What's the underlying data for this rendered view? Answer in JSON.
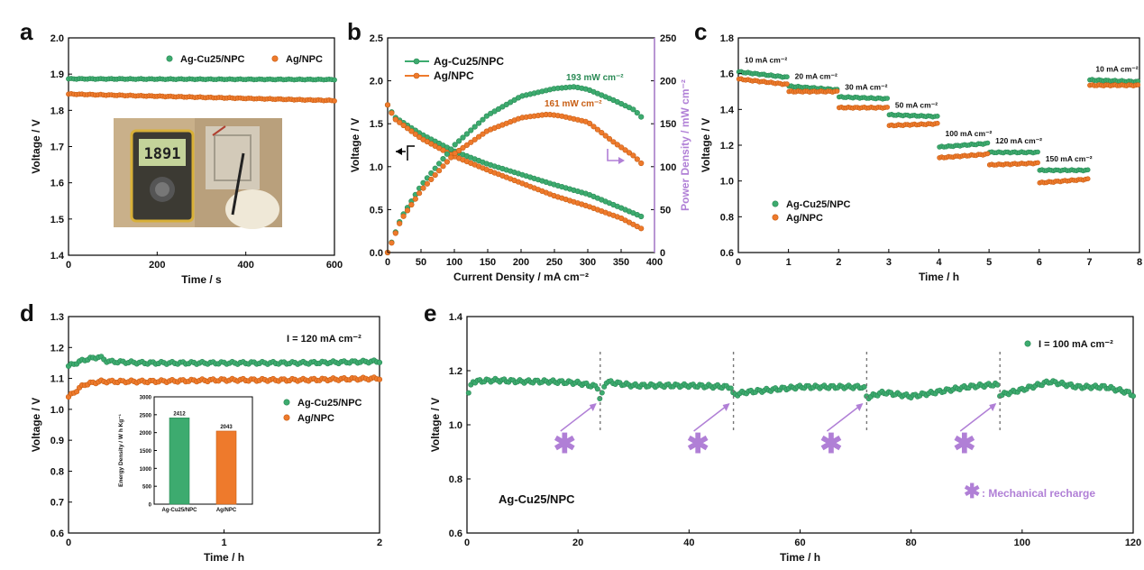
{
  "colors": {
    "green": "#3dab6f",
    "green_edge": "#2a8a55",
    "orange": "#ee7a2c",
    "orange_edge": "#c85e14",
    "purple": "#b07fd6"
  },
  "chart_data": [
    {
      "panel": "a",
      "type": "line",
      "xlabel": "Time / s",
      "ylabel": "Voltage / V",
      "xlim": [
        0,
        600
      ],
      "ylim": [
        1.4,
        2.0
      ],
      "xticks": [
        "0",
        "200",
        "400",
        "600"
      ],
      "yticks": [
        "1.4",
        "1.5",
        "1.6",
        "1.7",
        "1.8",
        "1.9",
        "2.0"
      ],
      "legend_position": "top-right",
      "photo": {
        "display": "1891",
        "description": "multimeter"
      },
      "series": [
        {
          "name": "Ag-Cu25/NPC",
          "color": "green",
          "x": [
            0,
            600
          ],
          "y": [
            1.887,
            1.885
          ]
        },
        {
          "name": "Ag/NPC",
          "color": "orange",
          "x": [
            0,
            600
          ],
          "y": [
            1.845,
            1.827
          ]
        }
      ]
    },
    {
      "panel": "b",
      "type": "line",
      "xlabel": "Current Density / mA cm⁻²",
      "ylabel": "Voltage / V",
      "y2label": "Power Density / mW cm⁻²",
      "xlim": [
        0,
        400
      ],
      "ylim": [
        0,
        2.5
      ],
      "y2lim": [
        0,
        250
      ],
      "xticks": [
        "0",
        "50",
        "100",
        "150",
        "200",
        "250",
        "300",
        "350",
        "400"
      ],
      "yticks": [
        "0.0",
        "0.5",
        "1.0",
        "1.5",
        "2.0",
        "2.5"
      ],
      "y2ticks": [
        "0",
        "50",
        "100",
        "150",
        "200",
        "250"
      ],
      "legend_position": "top-left",
      "annotations": [
        "193 mW cm⁻²",
        "161 mW cm⁻²"
      ],
      "series": [
        {
          "name": "Ag-Cu25/NPC",
          "color": "green",
          "kind": "voltage",
          "x": [
            0,
            10,
            50,
            100,
            150,
            200,
            250,
            300,
            350,
            380
          ],
          "y": [
            1.72,
            1.58,
            1.38,
            1.18,
            1.03,
            0.91,
            0.79,
            0.68,
            0.52,
            0.42
          ]
        },
        {
          "name": "Ag/NPC",
          "color": "orange",
          "kind": "voltage",
          "x": [
            0,
            10,
            50,
            100,
            150,
            200,
            250,
            300,
            350,
            380
          ],
          "y": [
            1.72,
            1.56,
            1.33,
            1.12,
            0.96,
            0.81,
            0.66,
            0.54,
            0.4,
            0.28
          ]
        },
        {
          "name": "Ag-Cu25/NPC",
          "color": "green",
          "kind": "power",
          "x": [
            0,
            20,
            50,
            100,
            150,
            200,
            250,
            280,
            300,
            340,
            370,
            380
          ],
          "y": [
            0,
            40,
            78,
            125,
            160,
            182,
            191,
            193,
            190,
            177,
            166,
            158
          ]
        },
        {
          "name": "Ag/NPC",
          "color": "orange",
          "kind": "power",
          "x": [
            0,
            20,
            50,
            100,
            150,
            200,
            240,
            260,
            300,
            340,
            370,
            380
          ],
          "y": [
            0,
            38,
            72,
            115,
            142,
            157,
            161,
            159,
            152,
            128,
            112,
            104
          ]
        }
      ]
    },
    {
      "panel": "c",
      "type": "line",
      "xlabel": "Time / h",
      "ylabel": "Voltage / V",
      "xlim": [
        0,
        8
      ],
      "ylim": [
        0.6,
        1.8
      ],
      "xticks": [
        "0",
        "1",
        "2",
        "3",
        "4",
        "5",
        "6",
        "7",
        "8"
      ],
      "yticks": [
        "0.6",
        "0.8",
        "1.0",
        "1.2",
        "1.4",
        "1.6",
        "1.8"
      ],
      "legend_position": "bottom-left",
      "step_labels": [
        "10 mA cm⁻²",
        "20 mA cm⁻²",
        "30 mA cm⁻²",
        "50 mA cm⁻²",
        "100 mA cm⁻²",
        "120 mA cm⁻²",
        "150 mA cm⁻²",
        "10 mA cm⁻²"
      ],
      "segments": [
        [
          0,
          1
        ],
        [
          1,
          2
        ],
        [
          2,
          3
        ],
        [
          3,
          4
        ],
        [
          4,
          5
        ],
        [
          5,
          6
        ],
        [
          6,
          7
        ],
        [
          7,
          8
        ]
      ],
      "series": [
        {
          "name": "Ag-Cu25/NPC",
          "color": "green",
          "start": [
            1.61,
            1.53,
            1.47,
            1.37,
            1.19,
            1.16,
            1.06,
            1.565
          ],
          "end": [
            1.58,
            1.51,
            1.46,
            1.36,
            1.21,
            1.16,
            1.06,
            1.555
          ]
        },
        {
          "name": "Ag/NPC",
          "color": "orange",
          "start": [
            1.57,
            1.5,
            1.41,
            1.31,
            1.13,
            1.09,
            0.99,
            1.535
          ],
          "end": [
            1.54,
            1.5,
            1.41,
            1.32,
            1.15,
            1.1,
            1.01,
            1.535
          ]
        }
      ]
    },
    {
      "panel": "d",
      "type": "line",
      "xlabel": "Time / h",
      "ylabel": "Voltage / V",
      "xlim": [
        0,
        2
      ],
      "ylim": [
        0.6,
        1.3
      ],
      "xticks": [
        "0",
        "1",
        "2"
      ],
      "yticks": [
        "0.6",
        "0.7",
        "0.8",
        "0.9",
        "1.0",
        "1.1",
        "1.2",
        "1.3"
      ],
      "legend_position": "right",
      "annotation": "I = 120 mA cm⁻²",
      "series": [
        {
          "name": "Ag-Cu25/NPC",
          "color": "green",
          "x": [
            0,
            0.1,
            0.2,
            0.25,
            0.5,
            1.0,
            1.5,
            2.0
          ],
          "y": [
            1.14,
            1.16,
            1.17,
            1.155,
            1.15,
            1.15,
            1.15,
            1.155
          ]
        },
        {
          "name": "Ag/NPC",
          "color": "orange",
          "x": [
            0,
            0.1,
            0.2,
            0.5,
            1.0,
            1.5,
            2.0
          ],
          "y": [
            1.04,
            1.08,
            1.09,
            1.09,
            1.095,
            1.095,
            1.1
          ]
        }
      ],
      "inset": {
        "type": "bar",
        "ylabel": "Energy Density / W h Kg⁻¹",
        "ylim": [
          0,
          3000
        ],
        "yticks": [
          "0",
          "500",
          "1000",
          "1500",
          "2000",
          "2500",
          "3000"
        ],
        "categories": [
          "Ag-Cu25/NPC",
          "Ag/NPC"
        ],
        "values": [
          2412,
          2043
        ],
        "value_labels": [
          "2412",
          "2043"
        ]
      }
    },
    {
      "panel": "e",
      "type": "line",
      "xlabel": "Time / h",
      "ylabel": "Voltage / V",
      "xlim": [
        0,
        120
      ],
      "ylim": [
        0.6,
        1.4
      ],
      "xticks": [
        "0",
        "20",
        "40",
        "60",
        "80",
        "100",
        "120"
      ],
      "yticks": [
        "0.6",
        "0.8",
        "1.0",
        "1.2",
        "1.4"
      ],
      "legend_position": "top-right",
      "legend": "I = 100 mA cm⁻²",
      "label": "Ag-Cu25/NPC",
      "recharge_legend": ": Mechanical recharge",
      "recharge_times": [
        24,
        48,
        72,
        96
      ],
      "series": [
        {
          "name": "Ag-Cu25/NPC",
          "color": "green",
          "x": [
            0,
            1,
            5,
            10,
            15,
            20,
            23.5,
            24,
            25,
            30,
            40,
            47.5,
            48,
            50,
            60,
            71.5,
            72,
            75,
            80,
            90,
            95.5,
            96,
            100,
            105,
            110,
            115,
            119,
            120
          ],
          "y": [
            1.1,
            1.16,
            1.165,
            1.16,
            1.16,
            1.155,
            1.14,
            1.09,
            1.16,
            1.145,
            1.145,
            1.14,
            1.11,
            1.12,
            1.14,
            1.14,
            1.1,
            1.12,
            1.105,
            1.14,
            1.15,
            1.11,
            1.13,
            1.16,
            1.14,
            1.14,
            1.12,
            1.11
          ]
        }
      ]
    }
  ],
  "panel_letters": [
    "a",
    "b",
    "c",
    "d",
    "e"
  ]
}
